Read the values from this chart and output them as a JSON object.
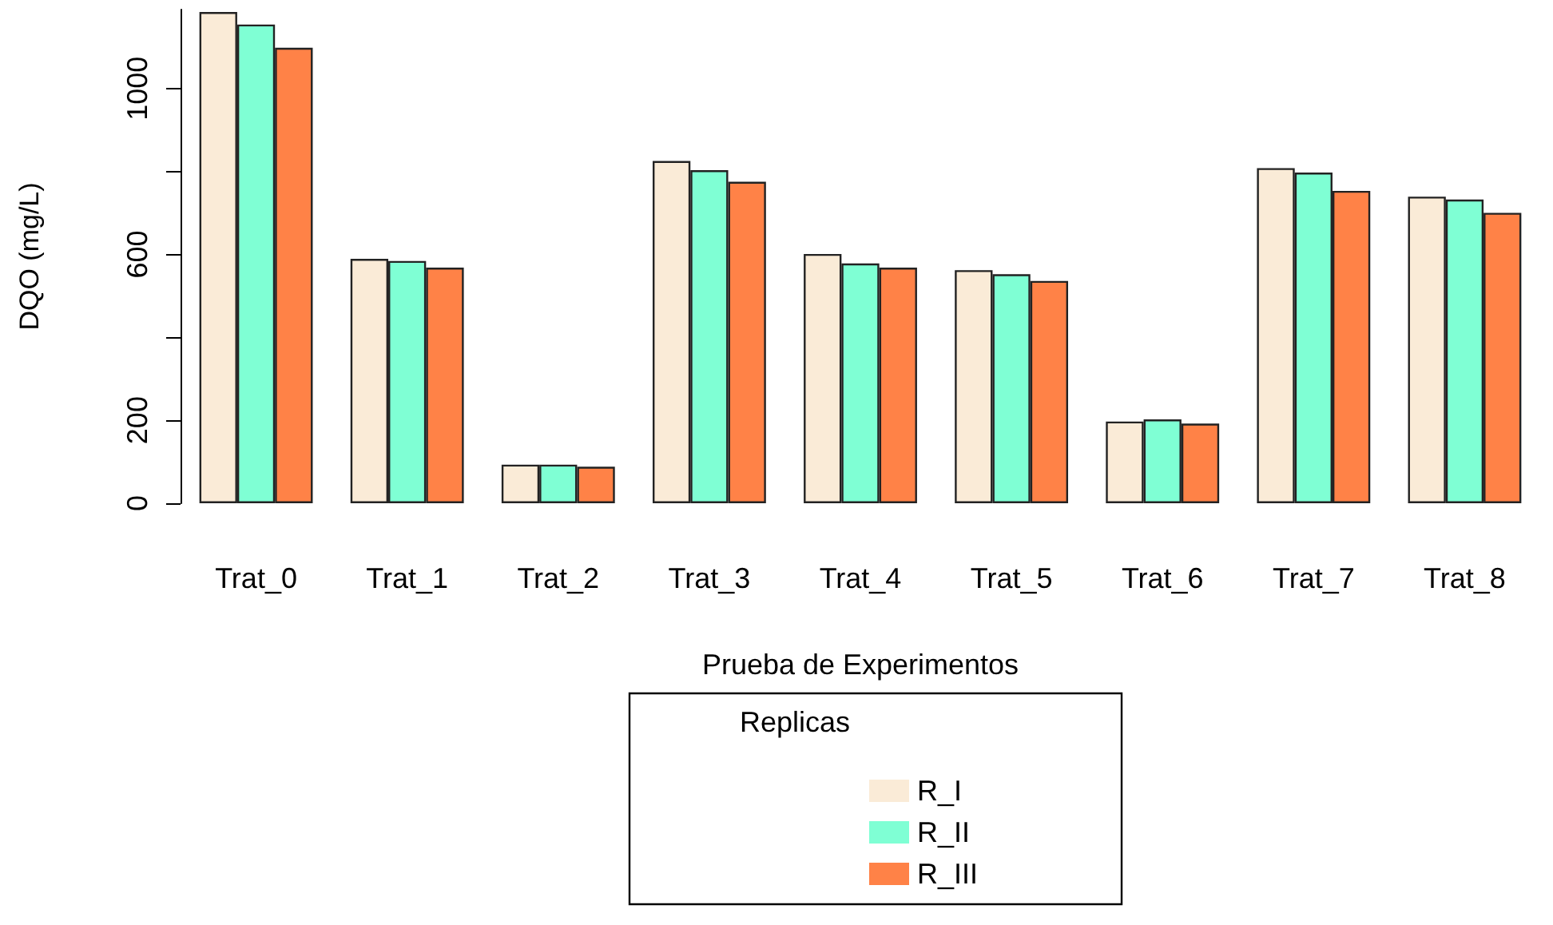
{
  "chart_data": {
    "type": "bar",
    "xlabel": "Prueba de Experimentos",
    "ylabel": "DQO (mg/L)",
    "legend_title": "Replicas",
    "categories": [
      "Trat_0",
      "Trat_1",
      "Trat_2",
      "Trat_3",
      "Trat_4",
      "Trat_5",
      "Trat_6",
      "Trat_7",
      "Trat_8"
    ],
    "series": [
      {
        "name": "R_I",
        "color": "#faebd7",
        "values": [
          1184,
          589,
          93,
          825,
          601,
          562,
          197,
          808,
          739
        ]
      },
      {
        "name": "R_II",
        "color": "#7fffd4",
        "values": [
          1154,
          584,
          93,
          803,
          578,
          552,
          202,
          797,
          732
        ]
      },
      {
        "name": "R_III",
        "color": "#ff8247",
        "values": [
          1098,
          568,
          88,
          775,
          568,
          536,
          192,
          753,
          700
        ]
      }
    ],
    "ylim": [
      0,
      1190
    ],
    "yticks": [
      0,
      200,
      {
        "value": 400,
        "label": null
      },
      600,
      {
        "value": 800,
        "label": null
      },
      1000
    ],
    "grid": false,
    "legend": "bottom"
  }
}
